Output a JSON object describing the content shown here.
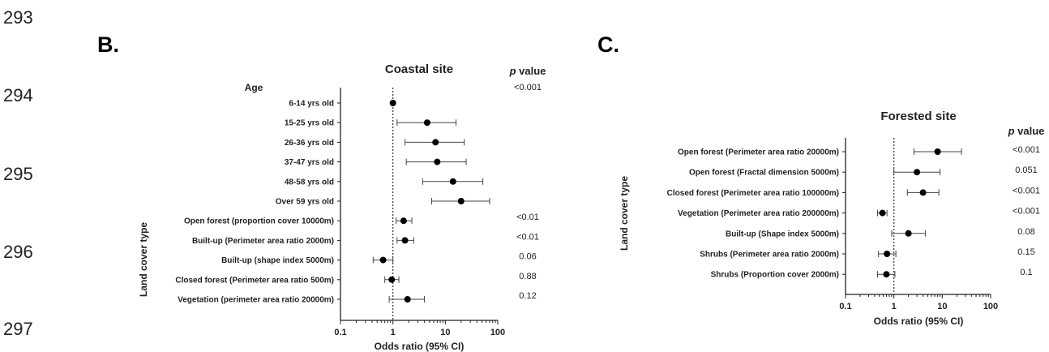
{
  "line_numbers": [
    "293",
    "294",
    "295",
    "296",
    "297"
  ],
  "chart_data": [
    {
      "panel_label": "B.",
      "type": "scatter",
      "subtype": "forest-plot",
      "title": "Coastal site",
      "xlabel": "Odds ratio (95% CI)",
      "ylabel": "Land cover type",
      "x_scale": "log",
      "xlim": [
        0.1,
        100
      ],
      "x_ticks": [
        "0.1",
        "1",
        "10",
        "100"
      ],
      "reference_line": 1,
      "pvalue_header_italic": "p",
      "pvalue_header_rest": " value",
      "group_label": "Age",
      "group_pvalue": "<0.001",
      "rows": [
        {
          "label": "6-14 yrs old",
          "or": 1.0,
          "ci": [
            1.0,
            1.0
          ],
          "p": ""
        },
        {
          "label": "15-25 yrs old",
          "or": 4.5,
          "ci": [
            1.2,
            16
          ],
          "p": ""
        },
        {
          "label": "26-36 yrs old",
          "or": 6.5,
          "ci": [
            1.7,
            23
          ],
          "p": ""
        },
        {
          "label": "37-47 yrs old",
          "or": 7.0,
          "ci": [
            1.8,
            25
          ],
          "p": ""
        },
        {
          "label": "48-58 yrs old",
          "or": 14,
          "ci": [
            3.7,
            52
          ],
          "p": ""
        },
        {
          "label": "Over 59 yrs old",
          "or": 20,
          "ci": [
            5.5,
            70
          ],
          "p": ""
        },
        {
          "label": "Open forest (proportion cover 10000m)",
          "or": 1.6,
          "ci": [
            1.15,
            2.3
          ],
          "p": "<0.01"
        },
        {
          "label": "Built-up (Perimeter area ratio 2000m)",
          "or": 1.7,
          "ci": [
            1.2,
            2.5
          ],
          "p": "<0.01"
        },
        {
          "label": "Built-up (shape index  5000m)",
          "or": 0.65,
          "ci": [
            0.42,
            1.0
          ],
          "p": "0.06"
        },
        {
          "label": "Closed forest (Perimeter area ratio 500m)",
          "or": 0.95,
          "ci": [
            0.7,
            1.3
          ],
          "p": "0.88"
        },
        {
          "label": "Vegetation (perimeter area ratio 20000m)",
          "or": 1.9,
          "ci": [
            0.85,
            4.0
          ],
          "p": "0.12"
        }
      ]
    },
    {
      "panel_label": "C.",
      "type": "scatter",
      "subtype": "forest-plot",
      "title": "Forested site",
      "xlabel": "Odds ratio (95% CI)",
      "ylabel": "Land cover type",
      "x_scale": "log",
      "xlim": [
        0.1,
        100
      ],
      "x_ticks": [
        "0.1",
        "1",
        "10",
        "100"
      ],
      "reference_line": 1,
      "pvalue_header_italic": "p",
      "pvalue_header_rest": " value",
      "rows": [
        {
          "label": "Open forest (Perimeter area ratio 20000m)",
          "or": 8,
          "ci": [
            2.6,
            25
          ],
          "p": "<0.001"
        },
        {
          "label": "Open forest (Fractal dimension 5000m)",
          "or": 3.0,
          "ci": [
            1.0,
            9.0
          ],
          "p": "0.051"
        },
        {
          "label": "Closed forest (Perimeter area ratio 100000m)",
          "or": 4.0,
          "ci": [
            1.9,
            8.5
          ],
          "p": "<0.001"
        },
        {
          "label": "Vegetation (Perimeter area ratio 200000m)",
          "or": 0.58,
          "ci": [
            0.46,
            0.72
          ],
          "p": "<0.001"
        },
        {
          "label": "Built-up (Shape index 5000m)",
          "or": 2.0,
          "ci": [
            0.9,
            4.5
          ],
          "p": "0.08"
        },
        {
          "label": "Shrubs (Perimeter area ratio 2000m)",
          "or": 0.72,
          "ci": [
            0.48,
            1.1
          ],
          "p": "0.15"
        },
        {
          "label": "Shrubs (Proportion cover 2000m)",
          "or": 0.7,
          "ci": [
            0.46,
            1.05
          ],
          "p": "0.1"
        }
      ]
    }
  ]
}
